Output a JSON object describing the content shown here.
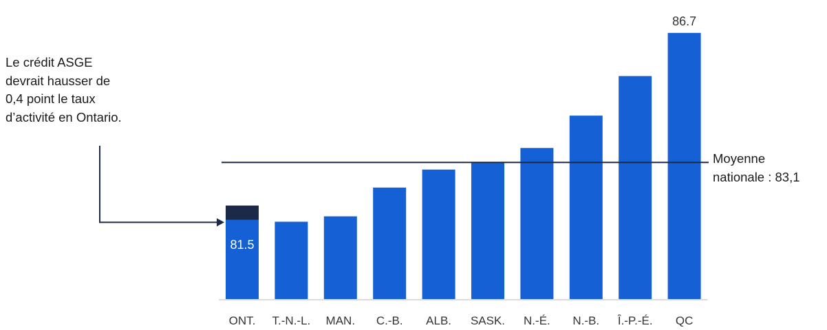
{
  "chart_data": {
    "type": "bar",
    "categories": [
      "ONT.",
      "T.-N.-L.",
      "MAN.",
      "C.-B.",
      "ALB.",
      "SASK.",
      "N.-É.",
      "N.-B.",
      "Î.-P.-É.",
      "QC"
    ],
    "values": [
      81.5,
      81.45,
      81.6,
      82.4,
      82.9,
      83.1,
      83.5,
      84.4,
      85.5,
      86.7
    ],
    "value_labels": [
      {
        "index": 0,
        "text": "81.5"
      },
      {
        "index": 9,
        "text": "86.7"
      }
    ],
    "increment": {
      "index": 0,
      "value": 0.4
    },
    "reference_line": {
      "value": 83.1,
      "label": "Moyenne\nnationale : 83,1"
    },
    "annotation": "Le crédit ASGE\ndevrait hausser de\n0,4 point le taux\nd’activité en Ontario.",
    "ylim": [
      79.3,
      86.85
    ],
    "colors": {
      "bar": "#1560d4",
      "increment": "#1b2a48",
      "reference_line": "#1b2a48",
      "arrow": "#1b2a48",
      "baseline": "#d0d0d0"
    }
  }
}
